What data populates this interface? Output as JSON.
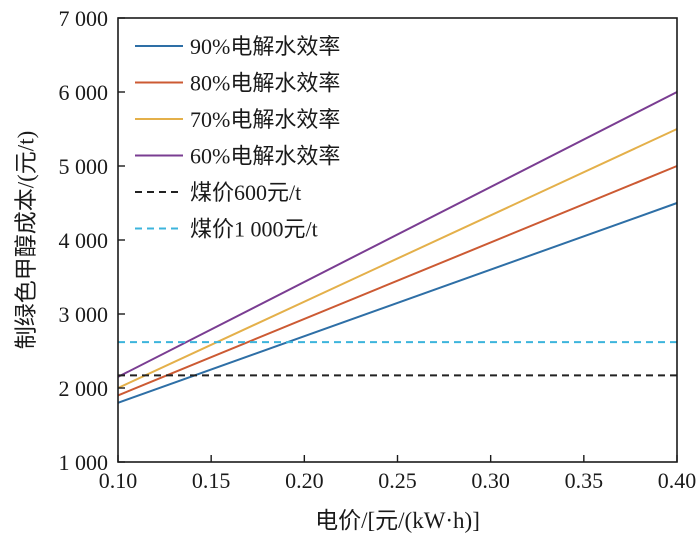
{
  "chart_data": {
    "type": "line",
    "xlabel": "电价/[元/(kW·h)]",
    "ylabel": "制绿色甲醇成本/(元/t)",
    "xlim": [
      0.1,
      0.4
    ],
    "ylim": [
      1000,
      7000
    ],
    "x_ticks": [
      0.1,
      0.15,
      0.2,
      0.25,
      0.3,
      0.35,
      0.4
    ],
    "x_tick_labels": [
      "0.10",
      "0.15",
      "0.20",
      "0.25",
      "0.30",
      "0.35",
      "0.40"
    ],
    "y_ticks": [
      1000,
      2000,
      3000,
      4000,
      5000,
      6000,
      7000
    ],
    "y_tick_labels": [
      "1 000",
      "2 000",
      "3 000",
      "4 000",
      "5 000",
      "6 000",
      "7 000"
    ],
    "legend_position": "top-left",
    "grid": false,
    "series": [
      {
        "name": "90%电解水效率",
        "color": "#2e6fa6",
        "dash": "solid",
        "x": [
          0.1,
          0.4
        ],
        "y": [
          1800,
          4500
        ]
      },
      {
        "name": "80%电解水效率",
        "color": "#cc5a33",
        "dash": "solid",
        "x": [
          0.1,
          0.4
        ],
        "y": [
          1900,
          5000
        ]
      },
      {
        "name": "70%电解水效率",
        "color": "#e4b04a",
        "dash": "solid",
        "x": [
          0.1,
          0.4
        ],
        "y": [
          2000,
          5500
        ]
      },
      {
        "name": "60%电解水效率",
        "color": "#7a3d92",
        "dash": "solid",
        "x": [
          0.1,
          0.4
        ],
        "y": [
          2150,
          6000
        ]
      },
      {
        "name": "煤价600元/t",
        "color": "#222222",
        "dash": "dashed",
        "x": [
          0.1,
          0.4
        ],
        "y": [
          2170,
          2170
        ]
      },
      {
        "name": "煤价1 000元/t",
        "color": "#3cb4dc",
        "dash": "dashed",
        "x": [
          0.1,
          0.4
        ],
        "y": [
          2620,
          2620
        ]
      }
    ]
  }
}
